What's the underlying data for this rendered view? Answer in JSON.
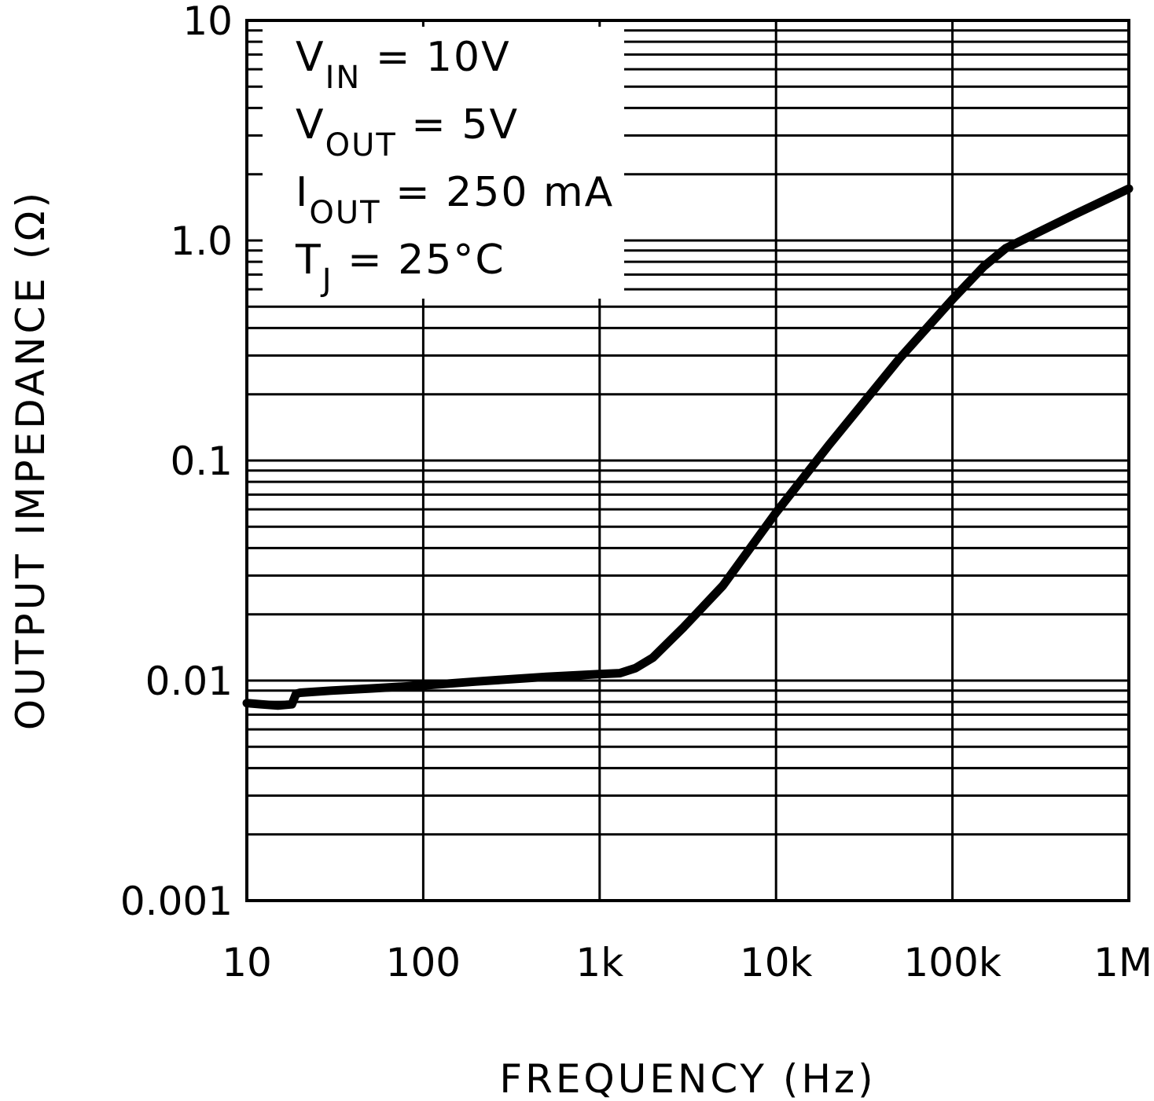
{
  "chart_data": {
    "type": "line",
    "xscale": "log",
    "yscale": "log",
    "xlabel": "FREQUENCY (Hz)",
    "ylabel": "OUTPUT IMPEDANCE (Ω)",
    "xlim": [
      10,
      1000000
    ],
    "ylim": [
      0.001,
      10
    ],
    "x_ticks": [
      {
        "value": 10,
        "label": "10"
      },
      {
        "value": 100,
        "label": "100"
      },
      {
        "value": 1000,
        "label": "1k"
      },
      {
        "value": 10000,
        "label": "10k"
      },
      {
        "value": 100000,
        "label": "100k"
      },
      {
        "value": 1000000,
        "label": "1M"
      }
    ],
    "y_ticks": [
      {
        "value": 10,
        "label": "10"
      },
      {
        "value": 1,
        "label": "1.0"
      },
      {
        "value": 0.1,
        "label": "0.1"
      },
      {
        "value": 0.01,
        "label": "0.01"
      },
      {
        "value": 0.001,
        "label": "0.001"
      }
    ],
    "grid": true,
    "conditions": [
      {
        "main": "V",
        "sub": "IN",
        "rest": " = 10V"
      },
      {
        "main": "V",
        "sub": "OUT",
        "rest": " = 5V"
      },
      {
        "main": "I",
        "sub": "OUT",
        "rest": " = 250 mA"
      },
      {
        "main": "T",
        "sub": "J",
        "rest": " = 25°C"
      }
    ],
    "series": [
      {
        "name": "Output Impedance",
        "color": "#000000",
        "x": [
          10,
          12,
          15,
          18,
          19,
          20,
          30,
          50,
          100,
          200,
          500,
          1000,
          1300,
          1600,
          2000,
          3000,
          5000,
          10000,
          20000,
          50000,
          100000,
          150000,
          200000,
          300000,
          500000,
          1000000
        ],
        "y": [
          0.0079,
          0.0078,
          0.0077,
          0.0078,
          0.0087,
          0.0088,
          0.009,
          0.0092,
          0.0095,
          0.0099,
          0.0104,
          0.0107,
          0.0108,
          0.0114,
          0.0127,
          0.0175,
          0.027,
          0.058,
          0.118,
          0.29,
          0.54,
          0.76,
          0.92,
          1.08,
          1.32,
          1.72
        ]
      }
    ]
  }
}
